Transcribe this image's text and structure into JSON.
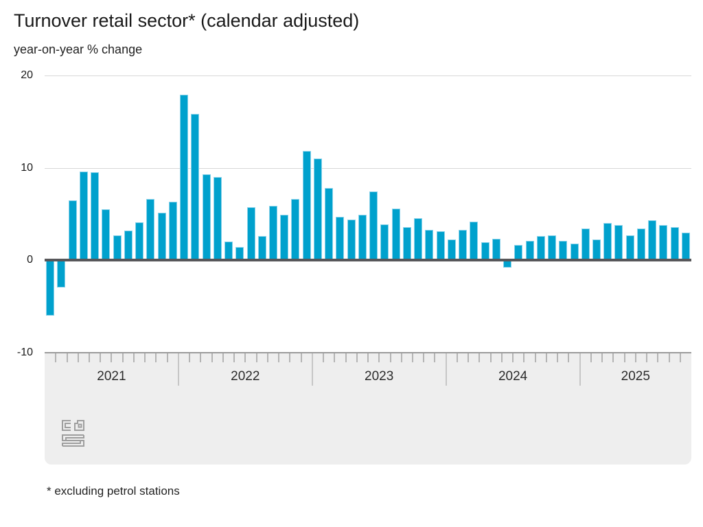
{
  "title": "Turnover retail sector* (calendar adjusted)",
  "subtitle": "year-on-year % change",
  "footnote": "* excluding petrol stations",
  "y_axis": {
    "tick_labels": [
      "20",
      "10",
      "0",
      "-10"
    ],
    "tick_values": [
      20,
      10,
      0,
      -10
    ]
  },
  "colors": {
    "bar": "#00a1cd",
    "bar_edge": "#8ad2ea",
    "zero_line": "#57575a",
    "gridline": "#d8d8d8",
    "band_bg": "#eeeeee",
    "band_border": "#9a9a9a",
    "month_tick": "#b4b4b4",
    "year_separator": "#c6c6c6",
    "text": "#191919",
    "logo": "#9e9e9e"
  },
  "chart_data": {
    "type": "bar",
    "title": "Turnover retail sector* (calendar adjusted)",
    "subtitle_unit": "year-on-year % change",
    "ylim": [
      -10,
      20
    ],
    "gridlines": [
      20,
      10
    ],
    "zero_baseline": true,
    "legend": null,
    "x_tick_years": [
      "2021",
      "2022",
      "2023",
      "2024",
      "2025"
    ],
    "series": [
      {
        "year": "2021",
        "values": [
          -5.9,
          -2.8,
          6.5,
          9.6,
          9.5,
          5.5,
          2.7,
          3.2,
          4.1,
          6.6,
          5.1,
          6.3
        ]
      },
      {
        "year": "2022",
        "values": [
          17.9,
          15.8,
          9.3,
          9.0,
          2.0,
          1.4,
          5.7,
          2.6,
          5.9,
          4.9,
          6.6,
          11.8
        ]
      },
      {
        "year": "2023",
        "values": [
          11.0,
          7.8,
          4.7,
          4.4,
          4.9,
          7.4,
          3.9,
          5.6,
          3.6,
          4.5,
          3.3,
          3.1
        ]
      },
      {
        "year": "2024",
        "values": [
          2.2,
          3.3,
          4.2,
          1.9,
          2.3,
          -0.7,
          1.6,
          2.1,
          2.6,
          2.7,
          2.1,
          1.8
        ]
      },
      {
        "year": "2025",
        "values": [
          3.4,
          2.2,
          4.0,
          3.8,
          2.7,
          3.4,
          4.3,
          3.8,
          3.6,
          3.0
        ]
      }
    ]
  }
}
